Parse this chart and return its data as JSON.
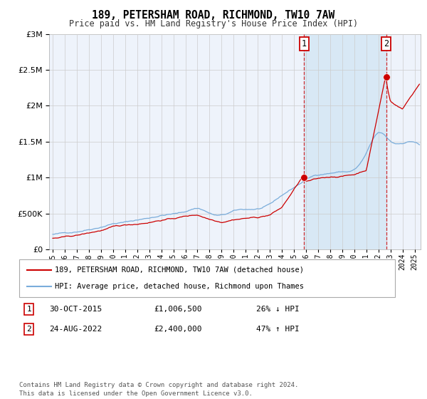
{
  "title": "189, PETERSHAM ROAD, RICHMOND, TW10 7AW",
  "subtitle": "Price paid vs. HM Land Registry's House Price Index (HPI)",
  "legend_line1": "189, PETERSHAM ROAD, RICHMOND, TW10 7AW (detached house)",
  "legend_line2": "HPI: Average price, detached house, Richmond upon Thames",
  "transaction1_label": "1",
  "transaction1_date": "30-OCT-2015",
  "transaction1_price": "£1,006,500",
  "transaction1_hpi": "26% ↓ HPI",
  "transaction2_label": "2",
  "transaction2_date": "24-AUG-2022",
  "transaction2_price": "£2,400,000",
  "transaction2_hpi": "47% ↑ HPI",
  "footer": "Contains HM Land Registry data © Crown copyright and database right 2024.\nThis data is licensed under the Open Government Licence v3.0.",
  "hpi_color": "#7aaddb",
  "price_color": "#cc0000",
  "vline_color": "#cc0000",
  "shade_color": "#d8e8f5",
  "grid_color": "#cccccc",
  "background_color": "#eef3fb",
  "ylim": [
    0,
    3000000
  ],
  "yticks": [
    0,
    500000,
    1000000,
    1500000,
    2000000,
    2500000,
    3000000
  ],
  "xlim_start": 1994.7,
  "xlim_end": 2025.5,
  "vline1_x": 2015.83,
  "vline2_x": 2022.65,
  "marker1_x": 2015.83,
  "marker1_y": 1006500,
  "marker2_x": 2022.65,
  "marker2_y": 2400000
}
